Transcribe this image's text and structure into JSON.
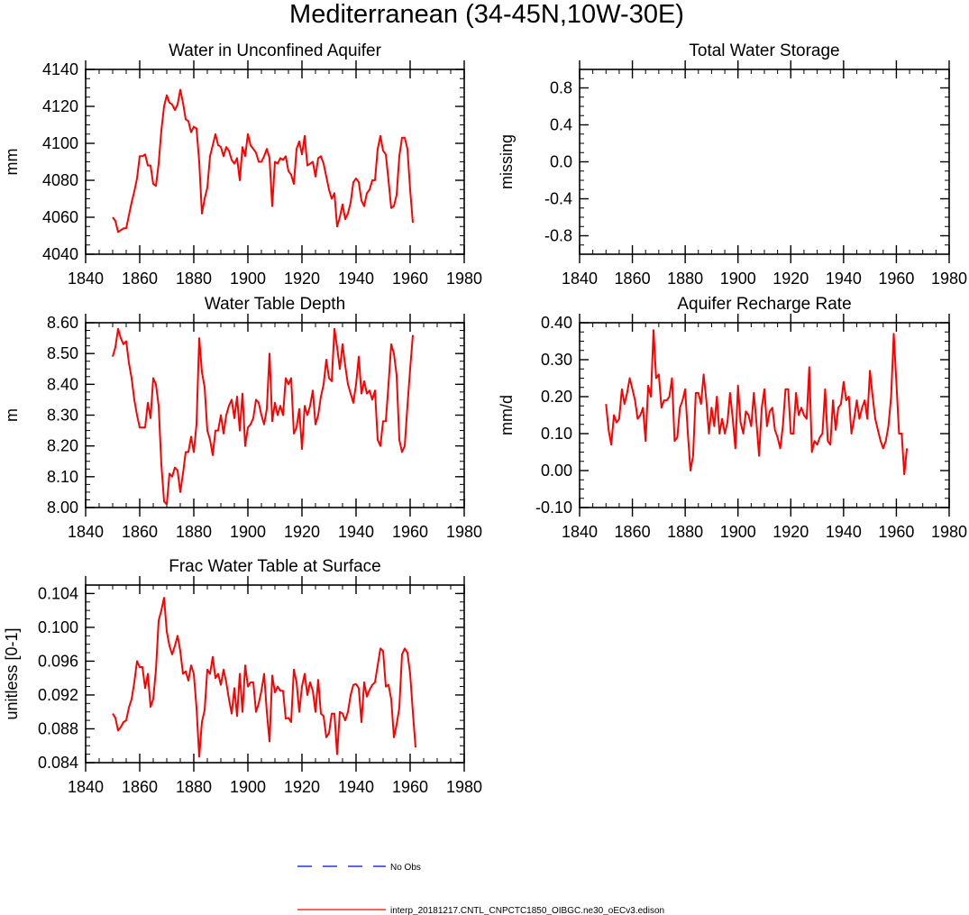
{
  "title": "Mediterranean (34-45N,10W-30E)",
  "legend": [
    {
      "label": "No Obs",
      "color": "#0000ff",
      "style": "dashed"
    },
    {
      "label": "interp_20181217.CNTL_CNPCTC1850_OIBGC.ne30_oECv3.edison",
      "color": "#ff0000",
      "style": "solid"
    }
  ],
  "chart_data": [
    {
      "type": "line",
      "title": "Water in Unconfined Aquifer",
      "ylabel": "mm",
      "xlim": [
        1840,
        1980
      ],
      "ylim": [
        4040,
        4140
      ],
      "xticks": [
        1840,
        1860,
        1880,
        1900,
        1920,
        1940,
        1960,
        1980
      ],
      "xtick_labels": [
        "1840",
        "1860",
        "1880",
        "1900",
        "1920",
        "1940",
        "1960",
        "1980"
      ],
      "yticks": [
        4040,
        4060,
        4080,
        4100,
        4120,
        4140
      ],
      "ytick_labels": [
        "4040",
        "4060",
        "4080",
        "4100",
        "4120",
        "4140"
      ],
      "x_start": 1850,
      "series": [
        {
          "name": "interp_20181217.CNTL_CNPCTC1850_OIBGC.ne30_oECv3.edison",
          "color": "#ff0000",
          "values": [
            4060,
            4058,
            4052,
            4053,
            4054,
            4054,
            4061,
            4068,
            4074,
            4081,
            4093,
            4093,
            4094,
            4088,
            4088,
            4078,
            4077,
            4089,
            4107,
            4120,
            4126,
            4122,
            4121,
            4118,
            4121,
            4129,
            4122,
            4113,
            4112,
            4106,
            4109,
            4108,
            4090,
            4062,
            4070,
            4076,
            4093,
            4099,
            4105,
            4099,
            4098,
            4093,
            4098,
            4096,
            4091,
            4089,
            4092,
            4080,
            4098,
            4093,
            4105,
            4099,
            4097,
            4095,
            4090,
            4090,
            4093,
            4097,
            4092,
            4066,
            4090,
            4089,
            4092,
            4091,
            4093,
            4085,
            4083,
            4078,
            4097,
            4101,
            4094,
            4104,
            4088,
            4089,
            4090,
            4082,
            4092,
            4093,
            4089,
            4082,
            4075,
            4070,
            4073,
            4055,
            4060,
            4067,
            4059,
            4062,
            4068,
            4079,
            4081,
            4079,
            4069,
            4066,
            4073,
            4075,
            4080,
            4080,
            4097,
            4104,
            4096,
            4094,
            4080,
            4065,
            4066,
            4072,
            4093,
            4103,
            4103,
            4097,
            4075,
            4057
          ]
        }
      ]
    },
    {
      "type": "line",
      "title": "Total Water Storage",
      "ylabel": "missing",
      "xlim": [
        1840,
        1980
      ],
      "ylim": [
        -1.0,
        1.0
      ],
      "xticks": [
        1840,
        1860,
        1880,
        1900,
        1920,
        1940,
        1960,
        1980
      ],
      "xtick_labels": [
        "1840",
        "1860",
        "1880",
        "1900",
        "1920",
        "1940",
        "1960",
        "1980"
      ],
      "yticks": [
        -0.8,
        -0.4,
        0.0,
        0.4,
        0.8
      ],
      "ytick_labels": [
        "-0.8",
        "-0.4",
        "0.0",
        "0.4",
        "0.8"
      ],
      "x_start": 1850,
      "series": []
    },
    {
      "type": "line",
      "title": "Water Table Depth",
      "ylabel": "m",
      "xlim": [
        1840,
        1980
      ],
      "ylim": [
        8.0,
        8.6
      ],
      "xticks": [
        1840,
        1860,
        1880,
        1900,
        1920,
        1940,
        1960,
        1980
      ],
      "xtick_labels": [
        "1840",
        "1860",
        "1880",
        "1900",
        "1920",
        "1940",
        "1960",
        "1980"
      ],
      "yticks": [
        8.0,
        8.1,
        8.2,
        8.3,
        8.4,
        8.5,
        8.6
      ],
      "ytick_labels": [
        "8.00",
        "8.10",
        "8.20",
        "8.30",
        "8.40",
        "8.50",
        "8.60"
      ],
      "x_start": 1850,
      "series": [
        {
          "name": "interp_20181217.CNTL_CNPCTC1850_OIBGC.ne30_oECv3.edison",
          "color": "#ff0000",
          "values": [
            8.49,
            8.52,
            8.58,
            8.55,
            8.53,
            8.54,
            8.47,
            8.42,
            8.35,
            8.3,
            8.26,
            8.26,
            8.26,
            8.34,
            8.29,
            8.42,
            8.4,
            8.33,
            8.14,
            8.02,
            8.01,
            8.11,
            8.1,
            8.13,
            8.12,
            8.05,
            8.11,
            8.18,
            8.18,
            8.23,
            8.18,
            8.27,
            8.55,
            8.44,
            8.39,
            8.25,
            8.22,
            8.17,
            8.25,
            8.25,
            8.3,
            8.24,
            8.3,
            8.33,
            8.35,
            8.29,
            8.36,
            8.25,
            8.37,
            8.2,
            8.26,
            8.27,
            8.29,
            8.35,
            8.34,
            8.3,
            8.27,
            8.32,
            8.5,
            8.28,
            8.34,
            8.3,
            8.33,
            8.3,
            8.42,
            8.4,
            8.42,
            8.24,
            8.26,
            8.32,
            8.19,
            8.33,
            8.3,
            8.33,
            8.38,
            8.27,
            8.3,
            8.36,
            8.4,
            8.48,
            8.42,
            8.41,
            8.58,
            8.52,
            8.45,
            8.53,
            8.46,
            8.4,
            8.37,
            8.34,
            8.4,
            8.49,
            8.37,
            8.41,
            8.37,
            8.38,
            8.35,
            8.38,
            8.22,
            8.2,
            8.28,
            8.28,
            8.4,
            8.53,
            8.5,
            8.43,
            8.22,
            8.18,
            8.2,
            8.33,
            8.45,
            8.56
          ]
        }
      ]
    },
    {
      "type": "line",
      "title": "Aquifer Recharge Rate",
      "ylabel": "mm/d",
      "xlim": [
        1840,
        1980
      ],
      "ylim": [
        -0.1,
        0.4
      ],
      "xticks": [
        1840,
        1860,
        1880,
        1900,
        1920,
        1940,
        1960,
        1980
      ],
      "xtick_labels": [
        "1840",
        "1860",
        "1880",
        "1900",
        "1920",
        "1940",
        "1960",
        "1980"
      ],
      "yticks": [
        -0.1,
        0.0,
        0.1,
        0.2,
        0.3,
        0.4
      ],
      "ytick_labels": [
        "-0.10",
        "0.00",
        "0.10",
        "0.20",
        "0.30",
        "0.40"
      ],
      "x_start": 1850,
      "series": [
        {
          "name": "interp_20181217.CNTL_CNPCTC1850_OIBGC.ne30_oECv3.edison",
          "color": "#ff0000",
          "values": [
            0.18,
            0.11,
            0.07,
            0.15,
            0.13,
            0.14,
            0.22,
            0.18,
            0.21,
            0.25,
            0.22,
            0.19,
            0.14,
            0.15,
            0.17,
            0.08,
            0.23,
            0.2,
            0.38,
            0.25,
            0.26,
            0.17,
            0.19,
            0.19,
            0.2,
            0.25,
            0.08,
            0.09,
            0.17,
            0.19,
            0.22,
            0.1,
            0.0,
            0.04,
            0.21,
            0.21,
            0.18,
            0.26,
            0.19,
            0.1,
            0.17,
            0.12,
            0.2,
            0.1,
            0.14,
            0.1,
            0.13,
            0.21,
            0.14,
            0.06,
            0.23,
            0.13,
            0.1,
            0.16,
            0.15,
            0.12,
            0.21,
            0.13,
            0.04,
            0.17,
            0.22,
            0.12,
            0.16,
            0.17,
            0.11,
            0.09,
            0.06,
            0.12,
            0.22,
            0.22,
            0.1,
            0.1,
            0.21,
            0.15,
            0.17,
            0.15,
            0.14,
            0.28,
            0.05,
            0.08,
            0.07,
            0.09,
            0.1,
            0.22,
            0.08,
            0.07,
            0.19,
            0.11,
            0.17,
            0.18,
            0.24,
            0.19,
            0.2,
            0.1,
            0.14,
            0.19,
            0.14,
            0.17,
            0.19,
            0.14,
            0.27,
            0.2,
            0.14,
            0.11,
            0.08,
            0.06,
            0.08,
            0.12,
            0.2,
            0.37,
            0.24,
            0.1,
            0.1,
            -0.01,
            0.06
          ]
        }
      ]
    },
    {
      "type": "line",
      "title": "Frac Water Table at Surface",
      "ylabel": "unitless [0-1]",
      "xlim": [
        1840,
        1980
      ],
      "ylim": [
        0.084,
        0.105
      ],
      "xticks": [
        1840,
        1860,
        1880,
        1900,
        1920,
        1940,
        1960,
        1980
      ],
      "xtick_labels": [
        "1840",
        "1860",
        "1880",
        "1900",
        "1920",
        "1940",
        "1960",
        "1980"
      ],
      "yticks": [
        0.084,
        0.088,
        0.092,
        0.096,
        0.1,
        0.104
      ],
      "ytick_labels": [
        "0.084",
        "0.088",
        "0.092",
        "0.096",
        "0.100",
        "0.104"
      ],
      "x_start": 1850,
      "series": [
        {
          "name": "interp_20181217.CNTL_CNPCTC1850_OIBGC.ne30_oECv3.edison",
          "color": "#ff0000",
          "values": [
            0.0898,
            0.0893,
            0.0878,
            0.0882,
            0.0888,
            0.089,
            0.0905,
            0.0915,
            0.0935,
            0.096,
            0.0953,
            0.0953,
            0.0928,
            0.0945,
            0.0906,
            0.0915,
            0.095,
            0.1008,
            0.102,
            0.1035,
            0.0995,
            0.0978,
            0.0968,
            0.0978,
            0.099,
            0.0972,
            0.0945,
            0.0948,
            0.0937,
            0.0955,
            0.0945,
            0.0905,
            0.0847,
            0.0888,
            0.0902,
            0.095,
            0.0945,
            0.0965,
            0.094,
            0.0945,
            0.0932,
            0.095,
            0.0935,
            0.0915,
            0.0898,
            0.0928,
            0.0895,
            0.0945,
            0.09,
            0.0955,
            0.093,
            0.0935,
            0.0935,
            0.09,
            0.091,
            0.0925,
            0.0945,
            0.09,
            0.0865,
            0.0943,
            0.0923,
            0.093,
            0.0925,
            0.0925,
            0.0892,
            0.0893,
            0.0888,
            0.095,
            0.0935,
            0.09,
            0.093,
            0.0945,
            0.092,
            0.0935,
            0.0925,
            0.09,
            0.0938,
            0.0898,
            0.0895,
            0.087,
            0.0875,
            0.0898,
            0.0898,
            0.085,
            0.09,
            0.0898,
            0.089,
            0.09,
            0.092,
            0.0932,
            0.0933,
            0.0928,
            0.0888,
            0.0935,
            0.0918,
            0.0926,
            0.0932,
            0.0935,
            0.0955,
            0.0975,
            0.0972,
            0.093,
            0.0932,
            0.0915,
            0.087,
            0.0885,
            0.0905,
            0.0968,
            0.0975,
            0.097,
            0.0945,
            0.09,
            0.0858
          ]
        }
      ]
    }
  ]
}
